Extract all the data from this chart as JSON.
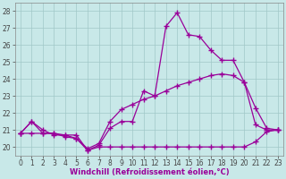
{
  "xlabel": "Windchill (Refroidissement éolien,°C)",
  "hours": [
    0,
    1,
    2,
    3,
    4,
    5,
    6,
    7,
    8,
    9,
    10,
    11,
    12,
    13,
    14,
    15,
    16,
    17,
    18,
    19,
    20,
    21,
    22,
    23
  ],
  "line_windchill": [
    20.8,
    21.5,
    20.8,
    20.8,
    20.6,
    20.5,
    19.8,
    20.1,
    21.1,
    21.5,
    21.5,
    23.3,
    23.0,
    27.1,
    27.9,
    26.6,
    26.5,
    25.7,
    25.1,
    25.1,
    23.8,
    22.3,
    21.1,
    21.0
  ],
  "line_temp": [
    20.8,
    21.5,
    21.0,
    20.7,
    20.7,
    20.5,
    19.9,
    20.2,
    21.5,
    22.2,
    22.5,
    22.8,
    23.0,
    23.3,
    23.6,
    23.8,
    24.0,
    24.2,
    24.3,
    24.2,
    23.8,
    21.3,
    21.0,
    21.0
  ],
  "line_min": [
    20.8,
    20.8,
    20.8,
    20.8,
    20.7,
    20.7,
    19.8,
    20.0,
    20.0,
    20.0,
    20.0,
    20.0,
    20.0,
    20.0,
    20.0,
    20.0,
    20.0,
    20.0,
    20.0,
    20.0,
    20.0,
    20.3,
    20.9,
    21.0
  ],
  "line_color": "#990099",
  "marker": "+",
  "markersize": 4,
  "markeredgewidth": 1.0,
  "ylim": [
    19.5,
    28.5
  ],
  "yticks": [
    20,
    21,
    22,
    23,
    24,
    25,
    26,
    27,
    28
  ],
  "xlim": [
    -0.5,
    23.5
  ],
  "bg_color": "#c8e8e8",
  "grid_color": "#a0c8c8",
  "line_width": 0.9,
  "tick_fontsize": 5.5,
  "xlabel_fontsize": 6.0
}
